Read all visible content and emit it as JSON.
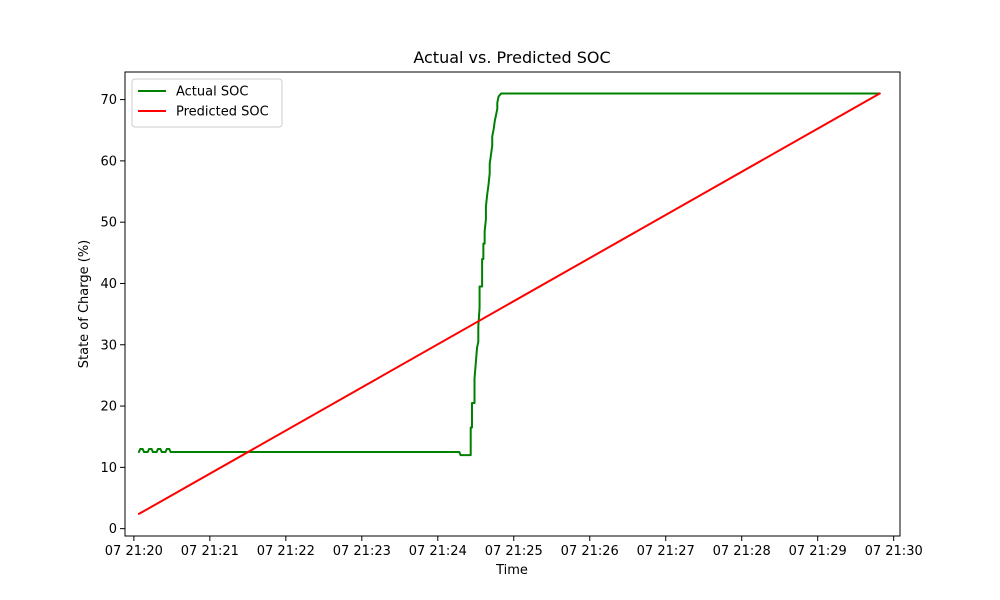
{
  "chart_data": {
    "type": "line",
    "title": "Actual vs. Predicted SOC",
    "xlabel": "Time",
    "ylabel": "State of Charge (%)",
    "x_axis": {
      "min": "07 21:19:53",
      "max": "07 21:30:05",
      "ticks": [
        "07 21:20",
        "07 21:21",
        "07 21:22",
        "07 21:23",
        "07 21:24",
        "07 21:25",
        "07 21:26",
        "07 21:27",
        "07 21:28",
        "07 21:29",
        "07 21:30"
      ]
    },
    "y_axis": {
      "min": -1.2,
      "max": 74.5,
      "ticks": [
        0,
        10,
        20,
        30,
        40,
        50,
        60,
        70
      ]
    },
    "legend_position": "top-left",
    "grid": false,
    "series": [
      {
        "name": "Actual SOC",
        "color": "#008000",
        "points": [
          [
            "07 21:20:04",
            12.5
          ],
          [
            "07 21:20:05",
            13.0
          ],
          [
            "07 21:20:07",
            13.0
          ],
          [
            "07 21:20:08",
            12.5
          ],
          [
            "07 21:20:11",
            12.5
          ],
          [
            "07 21:20:12",
            13.0
          ],
          [
            "07 21:20:14",
            13.0
          ],
          [
            "07 21:20:15",
            12.5
          ],
          [
            "07 21:20:18",
            12.5
          ],
          [
            "07 21:20:19",
            13.0
          ],
          [
            "07 21:20:21",
            13.0
          ],
          [
            "07 21:20:22",
            12.5
          ],
          [
            "07 21:20:25",
            12.5
          ],
          [
            "07 21:20:26",
            13.0
          ],
          [
            "07 21:20:28",
            13.0
          ],
          [
            "07 21:20:29",
            12.5
          ],
          [
            "07 21:24:17",
            12.5
          ],
          [
            "07 21:24:18",
            12.0
          ],
          [
            "07 21:24:26",
            12.0
          ],
          [
            "07 21:24:26",
            16.5
          ],
          [
            "07 21:24:27",
            16.5
          ],
          [
            "07 21:24:27",
            20.5
          ],
          [
            "07 21:24:29",
            20.5
          ],
          [
            "07 21:24:29",
            24.5
          ],
          [
            "07 21:24:30",
            27.0
          ],
          [
            "07 21:24:31",
            29.5
          ],
          [
            "07 21:24:32",
            30.5
          ],
          [
            "07 21:24:32",
            33.0
          ],
          [
            "07 21:24:33",
            36.0
          ],
          [
            "07 21:24:33",
            39.5
          ],
          [
            "07 21:24:35",
            39.5
          ],
          [
            "07 21:24:35",
            44.0
          ],
          [
            "07 21:24:36",
            44.0
          ],
          [
            "07 21:24:36",
            46.5
          ],
          [
            "07 21:24:37",
            46.5
          ],
          [
            "07 21:24:37",
            48.5
          ],
          [
            "07 21:24:38",
            50.5
          ],
          [
            "07 21:24:38",
            52.5
          ],
          [
            "07 21:24:39",
            54.5
          ],
          [
            "07 21:24:40",
            56.0
          ],
          [
            "07 21:24:41",
            58.0
          ],
          [
            "07 21:24:41",
            59.5
          ],
          [
            "07 21:24:42",
            61.0
          ],
          [
            "07 21:24:43",
            62.5
          ],
          [
            "07 21:24:43",
            64.0
          ],
          [
            "07 21:24:44",
            65.0
          ],
          [
            "07 21:24:45",
            66.5
          ],
          [
            "07 21:24:46",
            67.5
          ],
          [
            "07 21:24:47",
            68.5
          ],
          [
            "07 21:24:47",
            69.5
          ],
          [
            "07 21:24:48",
            70.5
          ],
          [
            "07 21:24:50",
            71.0
          ],
          [
            "07 21:29:49",
            71.0
          ]
        ]
      },
      {
        "name": "Predicted SOC",
        "color": "#ff0000",
        "points": [
          [
            "07 21:20:04",
            2.4
          ],
          [
            "07 21:29:49",
            71.0
          ]
        ]
      }
    ]
  }
}
